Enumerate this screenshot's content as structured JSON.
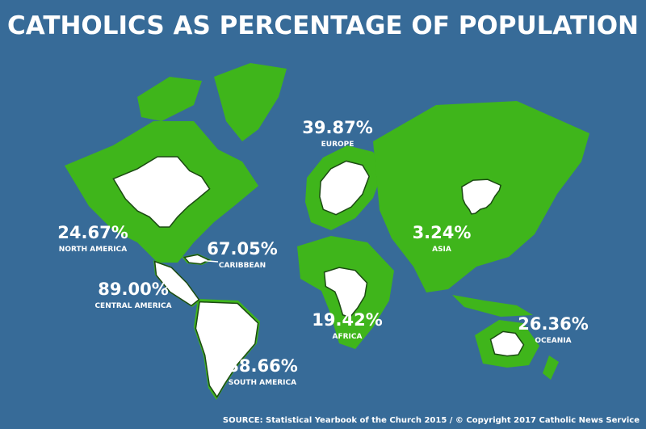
{
  "title": "CATHOLICS AS PERCENTAGE OF POPULATION",
  "regions": [
    {
      "name": "EUROPE",
      "value": 39.87,
      "label": "39.87%"
    },
    {
      "name": "NORTH AMERICA",
      "value": 24.67,
      "label": "24.67%"
    },
    {
      "name": "CARIBBEAN",
      "value": 67.05,
      "label": "67.05%"
    },
    {
      "name": "CENTRAL AMERICA",
      "value": 89.0,
      "label": "89.00%"
    },
    {
      "name": "SOUTH AMERICA",
      "value": 88.66,
      "label": "88.66%"
    },
    {
      "name": "AFRICA",
      "value": 19.42,
      "label": "19.42%"
    },
    {
      "name": "ASIA",
      "value": 3.24,
      "label": "3.24%"
    },
    {
      "name": "OCEANIA",
      "value": 26.36,
      "label": "26.36%"
    }
  ],
  "source": "SOURCE: Statistical Yearbook of the Church 2015 / © Copyright 2017 Catholic News Service"
}
